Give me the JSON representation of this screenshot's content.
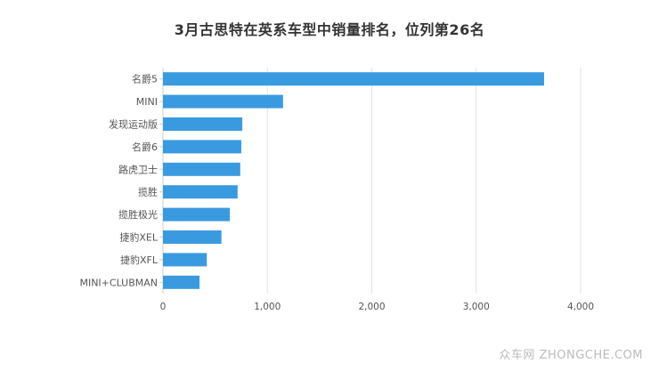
{
  "chart_data": {
    "type": "bar",
    "orientation": "horizontal",
    "title": "3月古思特在英系车型中销量排名，位列第26名",
    "categories": [
      "名爵5",
      "MINI",
      "发现运动版",
      "名爵6",
      "路虎卫士",
      "揽胜",
      "揽胜极光",
      "捷豹XEL",
      "捷豹XFL",
      "MINI+CLUBMAN"
    ],
    "values": [
      3650,
      1150,
      760,
      750,
      740,
      715,
      640,
      560,
      420,
      350
    ],
    "xlim": [
      0,
      4000
    ],
    "xticks": [
      0,
      1000,
      2000,
      3000,
      4000
    ],
    "xtick_labels": [
      "0",
      "1,000",
      "2,000",
      "3,000",
      "4,000"
    ],
    "bar_color": "#3a9ae0",
    "grid": true
  },
  "watermark": "众车网 ZHONGCHE.COM"
}
